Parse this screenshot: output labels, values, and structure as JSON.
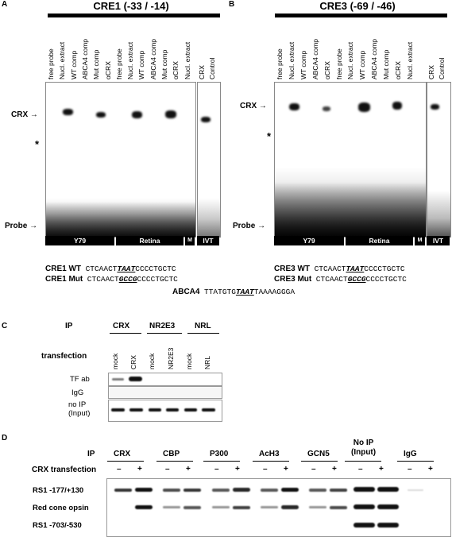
{
  "panelA": {
    "letter": "A",
    "title": "CRE1 (-33 / -14)",
    "lanes": [
      "free probe",
      "Nucl. extract",
      "WT comp",
      "ABCA4 comp",
      "Mut comp",
      "αCRX",
      "free probe",
      "Nucl. extract",
      "WT comp",
      "ABCA4 comp",
      "Mut comp",
      "αCRX",
      "Nucl. extract"
    ],
    "ivt_lanes": [
      "CRX",
      "Control"
    ],
    "markers": {
      "crx": "CRX",
      "star": "*",
      "probe": "Probe"
    },
    "groups": [
      "Y79",
      "Retina",
      "M",
      "IVT"
    ]
  },
  "panelB": {
    "letter": "B",
    "title": "CRE3 (-69 / -46)",
    "lanes": [
      "free probe",
      "Nucl. extract",
      "WT comp",
      "ABCA4 comp",
      "αCRX",
      "free probe",
      "Nucl. extract",
      "WT comp",
      "ABCA4 comp",
      "Mut comp",
      "αCRX",
      "Nucl. extract"
    ],
    "ivt_lanes": [
      "CRX",
      "Control"
    ],
    "markers": {
      "crx": "CRX",
      "star": "*",
      "probe": "Probe"
    },
    "groups": [
      "Y79",
      "Retina",
      "M",
      "IVT"
    ]
  },
  "sequences": {
    "cre1_wt": {
      "label": "CRE1 WT",
      "pre": "CTCAACT",
      "core": "TAAT",
      "post": "CCCCTGCTC"
    },
    "cre1_mut": {
      "label": "CRE1 Mut",
      "pre": "CTCAACT",
      "core": "GCCG",
      "post": "CCCCTGCTC"
    },
    "cre3_wt": {
      "label": "CRE3 WT",
      "pre": "CTCAACT",
      "core": "TAAT",
      "post": "CCCCTGCTC"
    },
    "cre3_mut": {
      "label": "CRE3 Mut",
      "pre": "CTCAACT",
      "core": "GCCG",
      "post": "CCCCTGCTC"
    },
    "abca4": {
      "label": "ABCA4",
      "pre": "TTATGTG",
      "core": "TAAT",
      "post": "TAAAAGGGA"
    }
  },
  "panelC": {
    "letter": "C",
    "ip_label": "IP",
    "ip_groups": [
      "CRX",
      "NR2E3",
      "NRL"
    ],
    "transfection_label": "transfection",
    "lanes": [
      "mock",
      "CRX",
      "mock",
      "NR2E3",
      "mock",
      "NRL"
    ],
    "rows": [
      "TF ab",
      "IgG",
      "no IP\n(Input)"
    ]
  },
  "panelD": {
    "letter": "D",
    "ip_label": "IP",
    "ip_groups": [
      "CRX",
      "CBP",
      "P300",
      "AcH3",
      "GCN5",
      "No IP\n(Input)",
      "IgG"
    ],
    "transfection_label": "CRX transfection",
    "signs": [
      "–",
      "+"
    ],
    "rows": [
      "RS1 -177/+130",
      "Red cone opsin",
      "RS1 -703/-530"
    ]
  }
}
